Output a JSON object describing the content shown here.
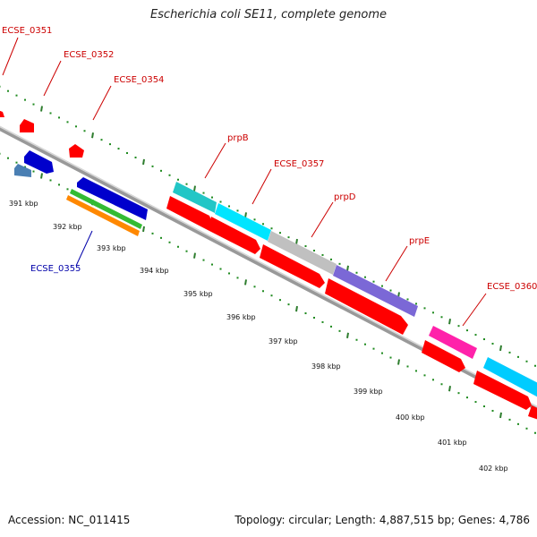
{
  "title": "Escherichia coli SE11, complete genome",
  "footer": {
    "accession": "Accession: NC_011415",
    "topology": "Topology: circular; Length: 4,887,515 bp; Genes: 4,786"
  },
  "scale": {
    "labels": [
      "391 kbp",
      "392 kbp",
      "393 kbp",
      "394 kbp",
      "395 kbp",
      "396 kbp",
      "397 kbp",
      "398 kbp",
      "399 kbp",
      "400 kbp",
      "401 kbp",
      "402 kbp"
    ]
  },
  "gene_labels": [
    {
      "text": "ECSE_0351",
      "color": "#cc0000"
    },
    {
      "text": "ECSE_0352",
      "color": "#cc0000"
    },
    {
      "text": "ECSE_0354",
      "color": "#cc0000"
    },
    {
      "text": "prpB",
      "color": "#cc0000"
    },
    {
      "text": "ECSE_0357",
      "color": "#cc0000"
    },
    {
      "text": "prpD",
      "color": "#cc0000"
    },
    {
      "text": "prpE",
      "color": "#cc0000"
    },
    {
      "text": "ECSE_0360",
      "color": "#cc0000"
    },
    {
      "text": "ECSE_0355",
      "color": "#0000aa"
    }
  ],
  "colors": {
    "backbone": "#888888",
    "cds": "#ff0000",
    "dots": "#1f8a1f",
    "ticks": "#2e7d2e"
  }
}
